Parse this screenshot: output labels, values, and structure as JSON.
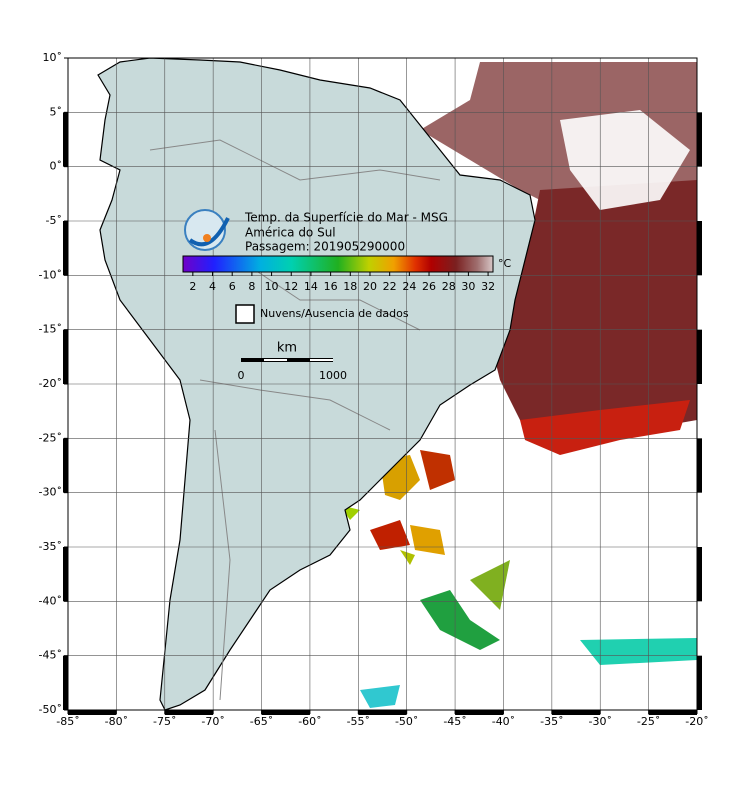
{
  "map": {
    "title": "Temp. da Superfície do Mar - MSG",
    "subtitle": "América do Sul",
    "pass": "Passagem: 201905290000",
    "xlim": [
      -85,
      -20
    ],
    "ylim": [
      -50,
      10
    ],
    "xticks": [
      {
        "value": -85,
        "label": "-85˚"
      },
      {
        "value": -80,
        "label": "-80˚"
      },
      {
        "value": -75,
        "label": "-75˚"
      },
      {
        "value": -70,
        "label": "-70˚"
      },
      {
        "value": -65,
        "label": "-65˚"
      },
      {
        "value": -60,
        "label": "-60˚"
      },
      {
        "value": -55,
        "label": "-55˚"
      },
      {
        "value": -50,
        "label": "-50˚"
      },
      {
        "value": -45,
        "label": "-45˚"
      },
      {
        "value": -40,
        "label": "-40˚"
      },
      {
        "value": -35,
        "label": "-35˚"
      },
      {
        "value": -30,
        "label": "-30˚"
      },
      {
        "value": -25,
        "label": "-25˚"
      },
      {
        "value": -20,
        "label": "-20˚"
      }
    ],
    "yticks": [
      {
        "value": 10,
        "label": "10˚"
      },
      {
        "value": 5,
        "label": "5˚"
      },
      {
        "value": 0,
        "label": "0˚"
      },
      {
        "value": -5,
        "label": "-5˚"
      },
      {
        "value": -10,
        "label": "-10˚"
      },
      {
        "value": -15,
        "label": "-15˚"
      },
      {
        "value": -20,
        "label": "-20˚"
      },
      {
        "value": -25,
        "label": "-25˚"
      },
      {
        "value": -30,
        "label": "-30˚"
      },
      {
        "value": -35,
        "label": "-35˚"
      },
      {
        "value": -40,
        "label": "-40˚"
      },
      {
        "value": -45,
        "label": "-45˚"
      },
      {
        "value": -50,
        "label": "-50˚"
      }
    ],
    "colorbar": {
      "unit": "°C",
      "range": [
        1,
        32.5
      ],
      "ticks": [
        2,
        4,
        6,
        8,
        10,
        12,
        14,
        16,
        18,
        20,
        22,
        24,
        26,
        28,
        30,
        32
      ]
    },
    "legend": "Nuvens/Ausencia de dados",
    "scale": {
      "unit": "km",
      "start": "0",
      "end": "1000"
    }
  }
}
